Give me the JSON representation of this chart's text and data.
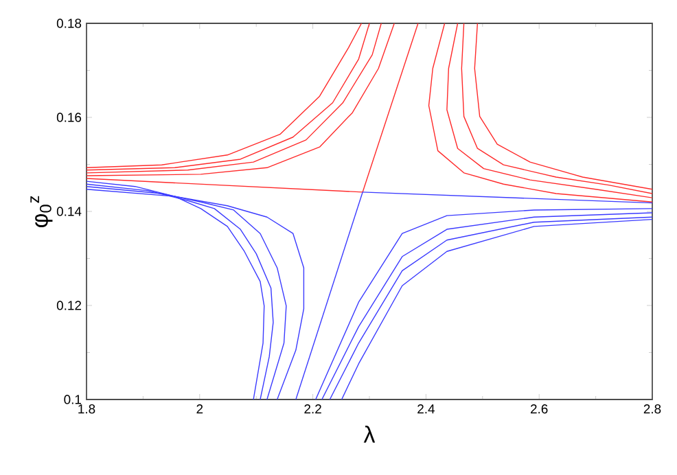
{
  "chart_data": {
    "type": "line",
    "xlabel": "λ",
    "ylabel": "φ$_{0}$$^{z}$",
    "xlim": [
      1.8,
      2.8
    ],
    "ylim": [
      0.1,
      0.18
    ],
    "xticks": [
      1.8,
      2,
      2.2,
      2.4,
      2.6,
      2.8
    ],
    "yticks": [
      0.1,
      0.12,
      0.14,
      0.16,
      0.18
    ],
    "grid": false,
    "line_style": "solid",
    "series": [
      {
        "color": "#ff2a2a",
        "x": [
          1.8,
          1.933,
          2.049,
          2.142,
          2.212,
          2.263,
          2.286
        ],
        "values": [
          0.1493,
          0.1499,
          0.152,
          0.1564,
          0.1645,
          0.1748,
          0.18
        ]
      },
      {
        "color": "#ff2a2a",
        "x": [
          1.8,
          1.956,
          2.072,
          2.165,
          2.235,
          2.281,
          2.3
        ],
        "values": [
          0.1488,
          0.1493,
          0.1511,
          0.1558,
          0.1631,
          0.1724,
          0.18
        ]
      },
      {
        "color": "#ff2a2a",
        "x": [
          1.8,
          1.979,
          2.095,
          2.188,
          2.253,
          2.305,
          2.321
        ],
        "values": [
          0.1482,
          0.1488,
          0.1505,
          0.1552,
          0.1631,
          0.1733,
          0.18
        ]
      },
      {
        "color": "#ff2a2a",
        "x": [
          1.8,
          2.002,
          2.119,
          2.212,
          2.27,
          2.316,
          2.344
        ],
        "values": [
          0.1476,
          0.1479,
          0.1493,
          0.1537,
          0.161,
          0.1704,
          0.18
        ]
      },
      {
        "color": "#ff2a2a",
        "x": [
          2.433,
          2.412,
          2.405,
          2.421,
          2.467,
          2.537,
          2.63,
          2.8
        ],
        "values": [
          0.18,
          0.1704,
          0.1625,
          0.1529,
          0.1482,
          0.1458,
          0.1438,
          0.142
        ]
      },
      {
        "color": "#ff2a2a",
        "x": [
          2.456,
          2.44,
          2.437,
          2.456,
          2.502,
          2.584,
          2.7,
          2.8
        ],
        "values": [
          0.18,
          0.1704,
          0.1616,
          0.1534,
          0.1491,
          0.1467,
          0.1447,
          0.1429
        ]
      },
      {
        "color": "#ff2a2a",
        "x": [
          2.467,
          2.463,
          2.467,
          2.491,
          2.537,
          2.63,
          2.723,
          2.8
        ],
        "values": [
          0.18,
          0.1704,
          0.1602,
          0.1534,
          0.1499,
          0.1473,
          0.1456,
          0.1438
        ]
      },
      {
        "color": "#ff2a2a",
        "x": [
          2.491,
          2.486,
          2.495,
          2.526,
          2.584,
          2.677,
          2.8
        ],
        "values": [
          0.18,
          0.1704,
          0.1602,
          0.1543,
          0.1505,
          0.1473,
          0.1447
        ]
      },
      {
        "color": "#ff2a2a",
        "x": [
          1.8,
          2.288
        ],
        "values": [
          0.147,
          0.1441
        ]
      },
      {
        "color": "#ff2a2a",
        "x": [
          2.288,
          2.386
        ],
        "values": [
          0.1441,
          0.18
        ]
      },
      {
        "color": "#3a3aff",
        "x": [
          2.288,
          2.8
        ],
        "values": [
          0.1441,
          0.1418
        ]
      },
      {
        "color": "#3a3aff",
        "x": [
          2.288,
          2.17
        ],
        "values": [
          0.1441,
          0.1
        ]
      },
      {
        "color": "#3a3aff",
        "x": [
          1.8,
          1.886,
          1.956,
          2.002,
          2.049,
          2.079,
          2.107,
          2.114,
          2.112,
          2.095
        ],
        "values": [
          0.1464,
          0.1453,
          0.1432,
          0.1406,
          0.1368,
          0.1315,
          0.1251,
          0.1199,
          0.112,
          0.1
        ]
      },
      {
        "color": "#3a3aff",
        "x": [
          1.8,
          1.909,
          1.979,
          2.026,
          2.072,
          2.1,
          2.126,
          2.13,
          2.123,
          2.107
        ],
        "values": [
          0.1458,
          0.1444,
          0.1423,
          0.1406,
          0.1362,
          0.131,
          0.1237,
          0.1164,
          0.1091,
          0.1
        ]
      },
      {
        "color": "#3a3aff",
        "x": [
          1.8,
          1.933,
          2.002,
          2.06,
          2.107,
          2.137,
          2.153,
          2.149,
          2.119
        ],
        "values": [
          0.1453,
          0.1438,
          0.142,
          0.1403,
          0.1353,
          0.128,
          0.1199,
          0.112,
          0.1
        ]
      },
      {
        "color": "#3a3aff",
        "x": [
          1.8,
          1.956,
          2.049,
          2.119,
          2.165,
          2.184,
          2.184,
          2.17,
          2.137
        ],
        "values": [
          0.1447,
          0.1432,
          0.1412,
          0.1388,
          0.1353,
          0.128,
          0.1193,
          0.1105,
          0.1
        ]
      },
      {
        "color": "#3a3aff",
        "x": [
          2.205,
          2.281,
          2.358,
          2.437,
          2.591,
          2.8
        ],
        "values": [
          0.1,
          0.1207,
          0.1353,
          0.1391,
          0.1403,
          0.1406
        ]
      },
      {
        "color": "#3a3aff",
        "x": [
          2.216,
          2.281,
          2.358,
          2.437,
          2.591,
          2.8
        ],
        "values": [
          0.1,
          0.1155,
          0.1304,
          0.1362,
          0.1388,
          0.1397
        ]
      },
      {
        "color": "#3a3aff",
        "x": [
          2.23,
          2.281,
          2.358,
          2.437,
          2.591,
          2.8
        ],
        "values": [
          0.1,
          0.112,
          0.1274,
          0.1339,
          0.1377,
          0.1388
        ]
      },
      {
        "color": "#3a3aff",
        "x": [
          2.251,
          2.281,
          2.358,
          2.437,
          2.591,
          2.8
        ],
        "values": [
          0.1,
          0.1076,
          0.1242,
          0.1315,
          0.1368,
          0.1383
        ]
      }
    ]
  }
}
